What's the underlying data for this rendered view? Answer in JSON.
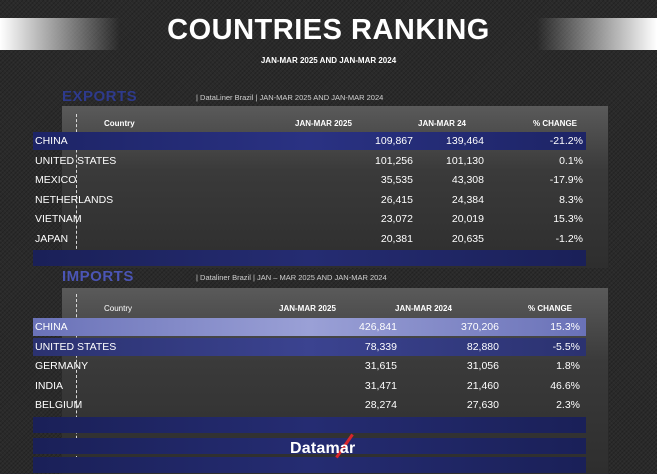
{
  "title": "COUNTRIES RANKING",
  "subtitle": "JAN-MAR 2025 AND JAN-MAR 2024",
  "exports": {
    "label": "EXPORTS",
    "source": "|  DataLiner Brazil  | JAN-MAR 2025 AND  JAN-MAR 2024",
    "headers": {
      "country": "Country",
      "col1": "JAN-MAR 2025",
      "col2": "JAN-MAR 24",
      "col3": "% CHANGE"
    },
    "rows": [
      {
        "country": "CHINA",
        "v1": "109,867",
        "v2": "139,464",
        "pct": "-21.2%"
      },
      {
        "country": "UNITED STATES",
        "v1": "101,256",
        "v2": "101,130",
        "pct": "0.1%"
      },
      {
        "country": "MEXICO",
        "v1": "35,535",
        "v2": "43,308",
        "pct": "-17.9%"
      },
      {
        "country": "NETHERLANDS",
        "v1": "26,415",
        "v2": "24,384",
        "pct": "8.3%"
      },
      {
        "country": "VIETNAM",
        "v1": "23,072",
        "v2": "20,019",
        "pct": "15.3%"
      },
      {
        "country": "JAPAN",
        "v1": "20,381",
        "v2": "20,635",
        "pct": "-1.2%"
      }
    ]
  },
  "imports": {
    "label": "IMPORTS",
    "source": "|  Dataliner Brazil  | JAN – MAR 2025 AND JAN-MAR 2024",
    "headers": {
      "country": "Country",
      "col1": "JAN-MAR 2025",
      "col2": "JAN-MAR 2024",
      "col3": "% CHANGE"
    },
    "rows": [
      {
        "country": "CHINA",
        "v1": "426,841",
        "v2": "370,206",
        "pct": "15.3%"
      },
      {
        "country": "UNITED STATES",
        "v1": "78,339",
        "v2": "82,880",
        "pct": "-5.5%"
      },
      {
        "country": "GERMANY",
        "v1": "31,615",
        "v2": "31,056",
        "pct": "1.8%"
      },
      {
        "country": "INDIA",
        "v1": "31,471",
        "v2": "21,460",
        "pct": "46.6%"
      },
      {
        "country": "BELGIUM",
        "v1": "28,274",
        "v2": "27,630",
        "pct": "2.3%"
      }
    ]
  },
  "logo": "Datamar",
  "colors": {
    "exports_label": "#2e3a8c",
    "imports_label": "#4b55b5",
    "row_dark": "#1d2466",
    "row_light": "#9aa0d6",
    "logo_accent": "#d8262c"
  }
}
